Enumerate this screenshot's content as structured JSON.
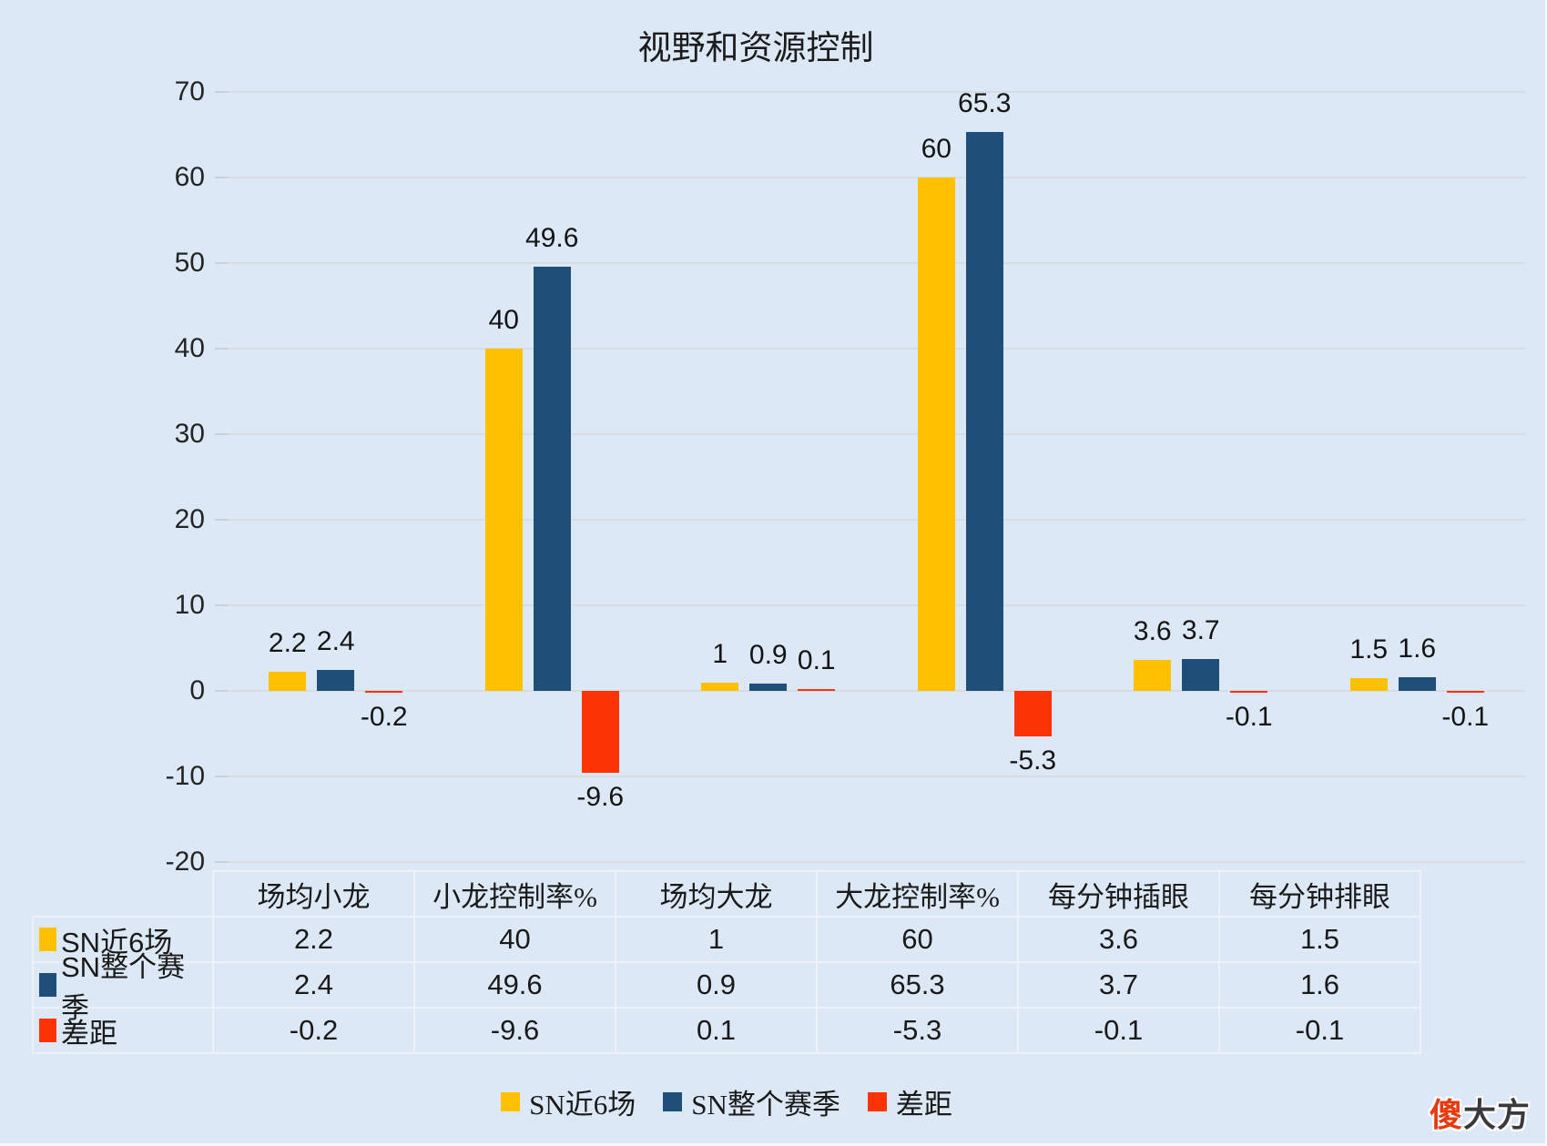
{
  "title": "视野和资源控制",
  "colors": {
    "background": "#dce8f5",
    "gridline": "#d8dce2",
    "series1": "#ffc000",
    "series2": "#1f4e79",
    "series3": "#fb3305"
  },
  "chart_data": {
    "type": "bar",
    "title": "视野和资源控制",
    "categories": [
      "场均小龙",
      "小龙控制率%",
      "场均大龙",
      "大龙控制率%",
      "每分钟插眼",
      "每分钟排眼"
    ],
    "series": [
      {
        "name": "SN近6场",
        "color": "#ffc000",
        "values": [
          2.2,
          40,
          1,
          60,
          3.6,
          1.5
        ]
      },
      {
        "name": "SN整个赛季",
        "color": "#1f4e79",
        "values": [
          2.4,
          49.6,
          0.9,
          65.3,
          3.7,
          1.6
        ]
      },
      {
        "name": "差距",
        "color": "#fb3305",
        "values": [
          -0.2,
          -9.6,
          0.1,
          -5.3,
          -0.1,
          -0.1
        ]
      }
    ],
    "ylim": [
      -20,
      70
    ],
    "yticks": [
      70,
      60,
      50,
      40,
      30,
      20,
      10,
      0,
      -10,
      -20
    ],
    "grid": true,
    "data_labels": true,
    "legend_position": "bottom"
  },
  "table": {
    "corner_label": "",
    "columns": [
      "场均小龙",
      "小龙控制率%",
      "场均大龙",
      "大龙控制率%",
      "每分钟插眼",
      "每分钟排眼"
    ],
    "rows": [
      {
        "name": "SN近6场",
        "swatch": "#ffc000",
        "values": [
          "2.2",
          "40",
          "1",
          "60",
          "3.6",
          "1.5"
        ]
      },
      {
        "name": "SN整个赛季",
        "swatch": "#1f4e79",
        "values": [
          "2.4",
          "49.6",
          "0.9",
          "65.3",
          "3.7",
          "1.6"
        ]
      },
      {
        "name": "差距",
        "swatch": "#fb3305",
        "values": [
          "-0.2",
          "-9.6",
          "0.1",
          "-5.3",
          "-0.1",
          "-0.1"
        ]
      }
    ]
  },
  "legend": {
    "items": [
      {
        "label": "SN近6场",
        "color": "#ffc000"
      },
      {
        "label": "SN整个赛季",
        "color": "#1f4e79"
      },
      {
        "label": "差距",
        "color": "#fb3305"
      }
    ]
  },
  "watermark": {
    "highlight": "傻",
    "rest": "大方"
  }
}
